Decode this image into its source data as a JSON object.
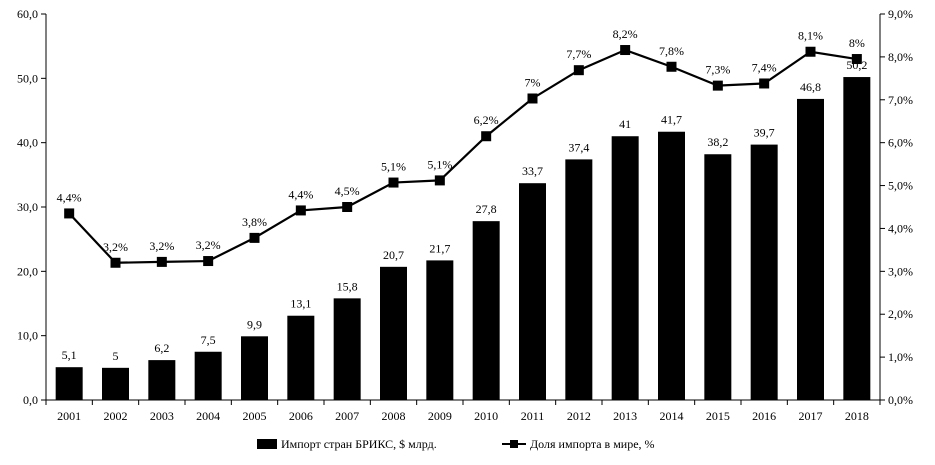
{
  "chart_data": {
    "type": "bar+line",
    "categories": [
      "2001",
      "2002",
      "2003",
      "2004",
      "2005",
      "2006",
      "2007",
      "2008",
      "2009",
      "2010",
      "2011",
      "2012",
      "2013",
      "2014",
      "2015",
      "2016",
      "2017",
      "2018"
    ],
    "series": [
      {
        "name": "Импорт стран БРИКС, $ млрд.",
        "type": "bar",
        "axis": "left",
        "color": "#000000",
        "values": [
          5.1,
          5,
          6.2,
          7.5,
          9.9,
          13.1,
          15.8,
          20.7,
          21.7,
          27.8,
          33.7,
          37.4,
          41,
          41.7,
          38.2,
          39.7,
          46.8,
          50.2
        ],
        "labels": [
          "5,1",
          "5",
          "6,2",
          "7,5",
          "9,9",
          "13,1",
          "15,8",
          "20,7",
          "21,7",
          "27,8",
          "33,7",
          "37,4",
          "41",
          "41,7",
          "38,2",
          "39,7",
          "46,8",
          "50,2"
        ]
      },
      {
        "name": "Доля импорта в мире, %",
        "type": "line",
        "axis": "right",
        "color": "#000000",
        "marker": "square",
        "values": [
          4.35,
          3.2,
          3.22,
          3.24,
          3.78,
          4.42,
          4.5,
          5.07,
          5.12,
          6.15,
          7.03,
          7.69,
          8.16,
          7.77,
          7.33,
          7.38,
          8.12,
          7.95
        ],
        "labels": [
          "4,4%",
          "3,2%",
          "3,2%",
          "3,2%",
          "3,8%",
          "4,4%",
          "4,5%",
          "5,1%",
          "5,1%",
          "6,2%",
          "7%",
          "7,7%",
          "8,2%",
          "7,8%",
          "7,3%",
          "7,4%",
          "8,1%",
          "8%"
        ]
      }
    ],
    "y_left": {
      "min": 0,
      "max": 60,
      "step": 10,
      "tick_labels": [
        "0,0",
        "10,0",
        "20,0",
        "30,0",
        "40,0",
        "50,0",
        "60,0"
      ]
    },
    "y_right": {
      "min": 0,
      "max": 9,
      "step": 1,
      "tick_labels": [
        "0,0%",
        "1,0%",
        "2,0%",
        "3,0%",
        "4,0%",
        "5,0%",
        "6,0%",
        "7,0%",
        "8,0%",
        "9,0%"
      ]
    },
    "grid": false,
    "legend_position": "bottom-center"
  }
}
